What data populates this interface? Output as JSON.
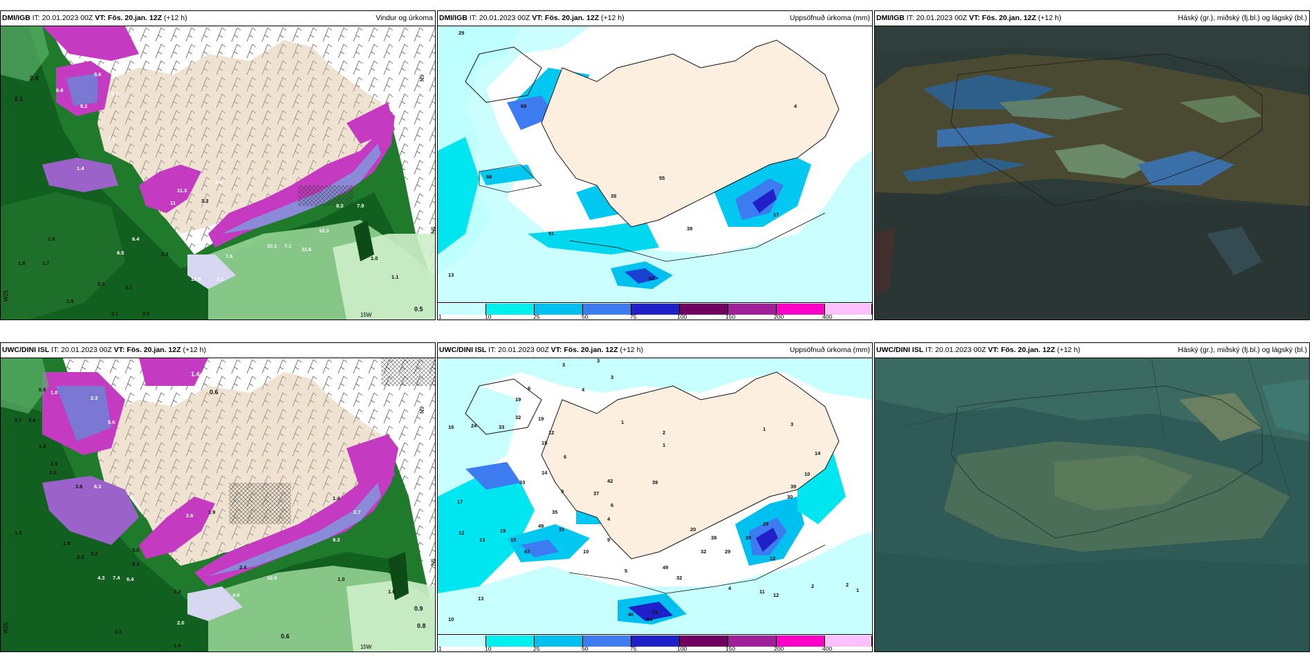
{
  "panels": {
    "p1": {
      "source": "DMI/IGB",
      "it": " IT: 20.01.2023 00Z ",
      "vt": "VT: Fös. 20.jan. 12Z",
      "lead": " (+12 h)",
      "title": "Vindur og úrkoma",
      "labels": [
        "1.4",
        "2.4",
        "2.1",
        "6.6",
        "9.2",
        "5.6",
        "6.9",
        "3.1",
        "11.3",
        "11",
        "3.3",
        "2.6",
        "1.4",
        "6.4",
        "6.5",
        "3.3",
        "1.8",
        "1.7",
        "1.8",
        "2.3",
        "2.1",
        "1.9",
        "2.1",
        "2.0",
        "10.3",
        "9.3",
        "7.9",
        "10.1",
        "7.1",
        "11.6",
        "7.6",
        "12.5",
        "3.1",
        "1.0",
        "1.1",
        "0.5"
      ],
      "axis": [
        "N9",
        "W25",
        "15W",
        "N6",
        "N9",
        "W25"
      ]
    },
    "p2": {
      "source": "DMI/IGB",
      "it": " IT: 20.01.2023 00Z ",
      "vt": "VT: Fös. 20.jan. 12Z",
      "lead": " (+12 h)",
      "title": "Uppsöfnuð úrkoma (mm)",
      "labels": [
        "29",
        "68",
        "66",
        "55",
        "35",
        "51",
        "4",
        "39",
        "17",
        "62",
        "13"
      ]
    },
    "p3": {
      "source": "DMI/IGB",
      "it": " IT: 20.01.2023 00Z ",
      "vt": "VT: Fös. 20.jan. 12Z",
      "lead": " (+12 h)",
      "title": "Háský (gr.), miðský (fj.bl.) og lágský (bl.)"
    },
    "p4": {
      "source": "UWC/DINI ISL",
      "it": " IT: 20.01.2023 00Z ",
      "vt": "VT: Fös. 20.jan. 12Z",
      "lead": " (+12 h)",
      "title": "",
      "labels": [
        "1.4",
        "0.6",
        "0.9",
        "1.0",
        "2.7",
        "2.4",
        "2.3",
        "5.6",
        "1.8",
        "2.0",
        "2.9",
        "3.6",
        "6.3",
        "1.3",
        "1.8",
        "2.3",
        "2.2",
        "4.3",
        "7.4",
        "6.4",
        "8.3",
        "5.0",
        "2.6",
        "3.3",
        "4.9",
        "2.4",
        "1.9",
        "2.7",
        "9.3",
        "1.4",
        "10.9",
        "2.0",
        "1.0",
        "0.9",
        "0.8",
        "0.6",
        "1.6",
        "2.3",
        "1.4"
      ],
      "axis": [
        "N9",
        "W25",
        "15W",
        "N6"
      ]
    },
    "p5": {
      "source": "UWC/DINI ISL",
      "it": " IT: 20.01.2023 00Z ",
      "vt": "VT: Fös. 20.jan. 12Z",
      "lead": " (+12 h)",
      "title": "Uppsöfnuð úrkoma (mm)",
      "labels": [
        "3",
        "3",
        "4",
        "3",
        "6",
        "19",
        "32",
        "16",
        "24",
        "33",
        "19",
        "12",
        "15",
        "33",
        "14",
        "6",
        "1",
        "2",
        "1",
        "1",
        "3",
        "14",
        "10",
        "17",
        "9",
        "42",
        "37",
        "39",
        "6",
        "4",
        "12",
        "13",
        "15",
        "15",
        "9",
        "10",
        "30",
        "39",
        "49",
        "32",
        "38",
        "20",
        "35",
        "31",
        "29",
        "25",
        "28",
        "12",
        "2",
        "1",
        "13",
        "10",
        "4",
        "11",
        "12",
        "2",
        "40",
        "78",
        "84",
        "32",
        "49",
        "63",
        "5"
      ]
    },
    "p6": {
      "source": "UWC/DINI ISL",
      "it": " IT: 20.01.2023 00Z ",
      "vt": "VT: Fös. 20.jan. 12Z",
      "lead": " (+12 h)",
      "title": "Háský (gr.), miðský (fj.bl.) og lágský (bl.)"
    }
  },
  "colorbar": {
    "ticks": [
      "1",
      "10",
      "25",
      "50",
      "75",
      "100",
      "150",
      "200",
      "400"
    ],
    "colors": [
      "#c8ffff",
      "#00f0f0",
      "#00c0f0",
      "#3d7cf0",
      "#2020c8",
      "#700060",
      "#a0209a",
      "#ff00c8",
      "#ffc0ff"
    ]
  }
}
